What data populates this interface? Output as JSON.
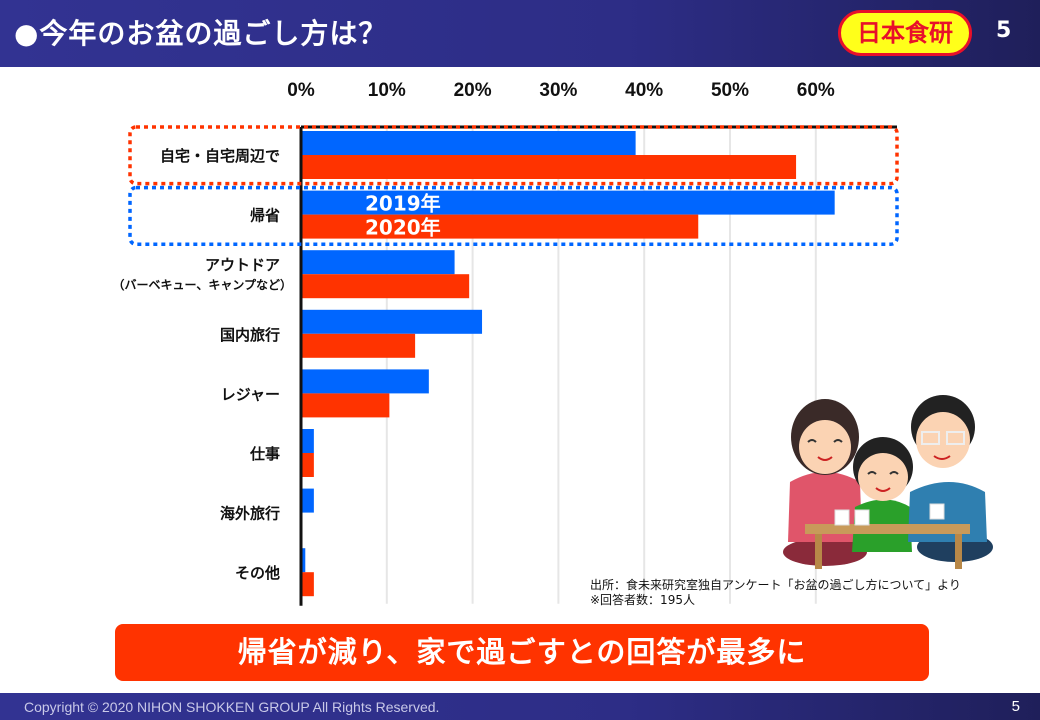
{
  "header": {
    "title": "●今年のお盆の過ごし方は？",
    "logo_text": "日本食研",
    "page_number": "5"
  },
  "colors": {
    "header_bg": "#323392",
    "series_2019": "#0066ff",
    "series_2020": "#ff3300",
    "logo_bg": "#ffff1a",
    "logo_border": "#e8102a",
    "banner_bg": "#ff3300"
  },
  "chart_data": {
    "type": "bar",
    "orientation": "horizontal",
    "title": "",
    "xlabel": "",
    "ylabel": "",
    "xlim": [
      0,
      60
    ],
    "x_ticks": [
      "0%",
      "10%",
      "20%",
      "30%",
      "40%",
      "50%",
      "60%"
    ],
    "x_tick_values": [
      0,
      10,
      20,
      30,
      40,
      50,
      60
    ],
    "grid": true,
    "categories": [
      {
        "label": "自宅・自宅周辺で",
        "sublabel": ""
      },
      {
        "label": "帰省",
        "sublabel": ""
      },
      {
        "label": "アウトドア",
        "sublabel": "（バーベキュー、キャンプなど）"
      },
      {
        "label": "国内旅行",
        "sublabel": ""
      },
      {
        "label": "レジャー",
        "sublabel": ""
      },
      {
        "label": "仕事",
        "sublabel": ""
      },
      {
        "label": "海外旅行",
        "sublabel": ""
      },
      {
        "label": "その他",
        "sublabel": ""
      }
    ],
    "series": [
      {
        "name": "2019年",
        "color": "#0066ff",
        "values": [
          39.0,
          62.2,
          17.9,
          21.1,
          14.9,
          1.5,
          1.5,
          0.5
        ]
      },
      {
        "name": "2020年",
        "color": "#ff3300",
        "values": [
          57.7,
          46.3,
          19.6,
          13.3,
          10.3,
          1.5,
          0,
          1.5
        ]
      }
    ],
    "legend": "inline-in-bars (帰省 row)",
    "highlights": [
      {
        "category": "自宅・自宅周辺で",
        "style": "dotted",
        "color": "#ff3300"
      },
      {
        "category": "帰省",
        "style": "dotted",
        "color": "#0066ff"
      }
    ]
  },
  "source_note": {
    "line1": "出所：食未来研究室独自アンケート「お盆の過ごし方について」より",
    "line2": "※回答者数：195人"
  },
  "banner": {
    "text": "帰省が減り、家で過ごすとの回答が最多に"
  },
  "footer": {
    "copyright": "Copyright © 2020 NIHON SHOKKEN GROUP All Rights Reserved.",
    "page_number": "5"
  },
  "illustration": {
    "icon": "family-at-table-icon"
  }
}
